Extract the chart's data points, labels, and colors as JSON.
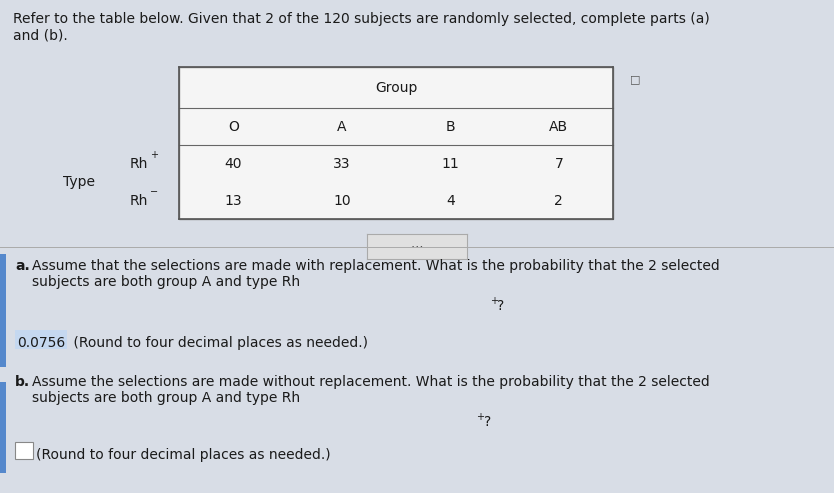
{
  "title_text": "Refer to the table below. Given that 2 of the 120 subjects are randomly selected, complete parts (a)\nand (b).",
  "group_label": "Group",
  "col_headers": [
    "O",
    "A",
    "B",
    "AB"
  ],
  "row_label": "Type",
  "rh_plus": "Rh",
  "rh_minus": "Rh",
  "row_types_super": [
    "+",
    "⁻"
  ],
  "table_data": [
    [
      40,
      33,
      11,
      7
    ],
    [
      13,
      10,
      4,
      2
    ]
  ],
  "part_a_bold": "a.",
  "part_a_text": " Assume that the selections are made with replacement. What is the probability that the 2 selected\nsubjects are both group A and type Rh",
  "part_a_super": "+",
  "part_a_end": "?",
  "answer_a": "0.0756",
  "answer_a_suffix": " (Round to four decimal places as needed.)",
  "part_b_bold": "b.",
  "part_b_text": " Assume the selections are made without replacement. What is the probability that the 2 selected\nsubjects are both group A and type Rh",
  "part_b_super": "+",
  "part_b_end": "?",
  "answer_b_suffix": "(Round to four decimal places as needed.)",
  "bg_color": "#d8dde6",
  "table_bg": "#f0f0f0",
  "answer_a_bg": "#c5d8f0",
  "text_color": "#1a1a1a",
  "font_size_title": 10.0,
  "font_size_body": 10.0,
  "font_size_table": 10.0
}
